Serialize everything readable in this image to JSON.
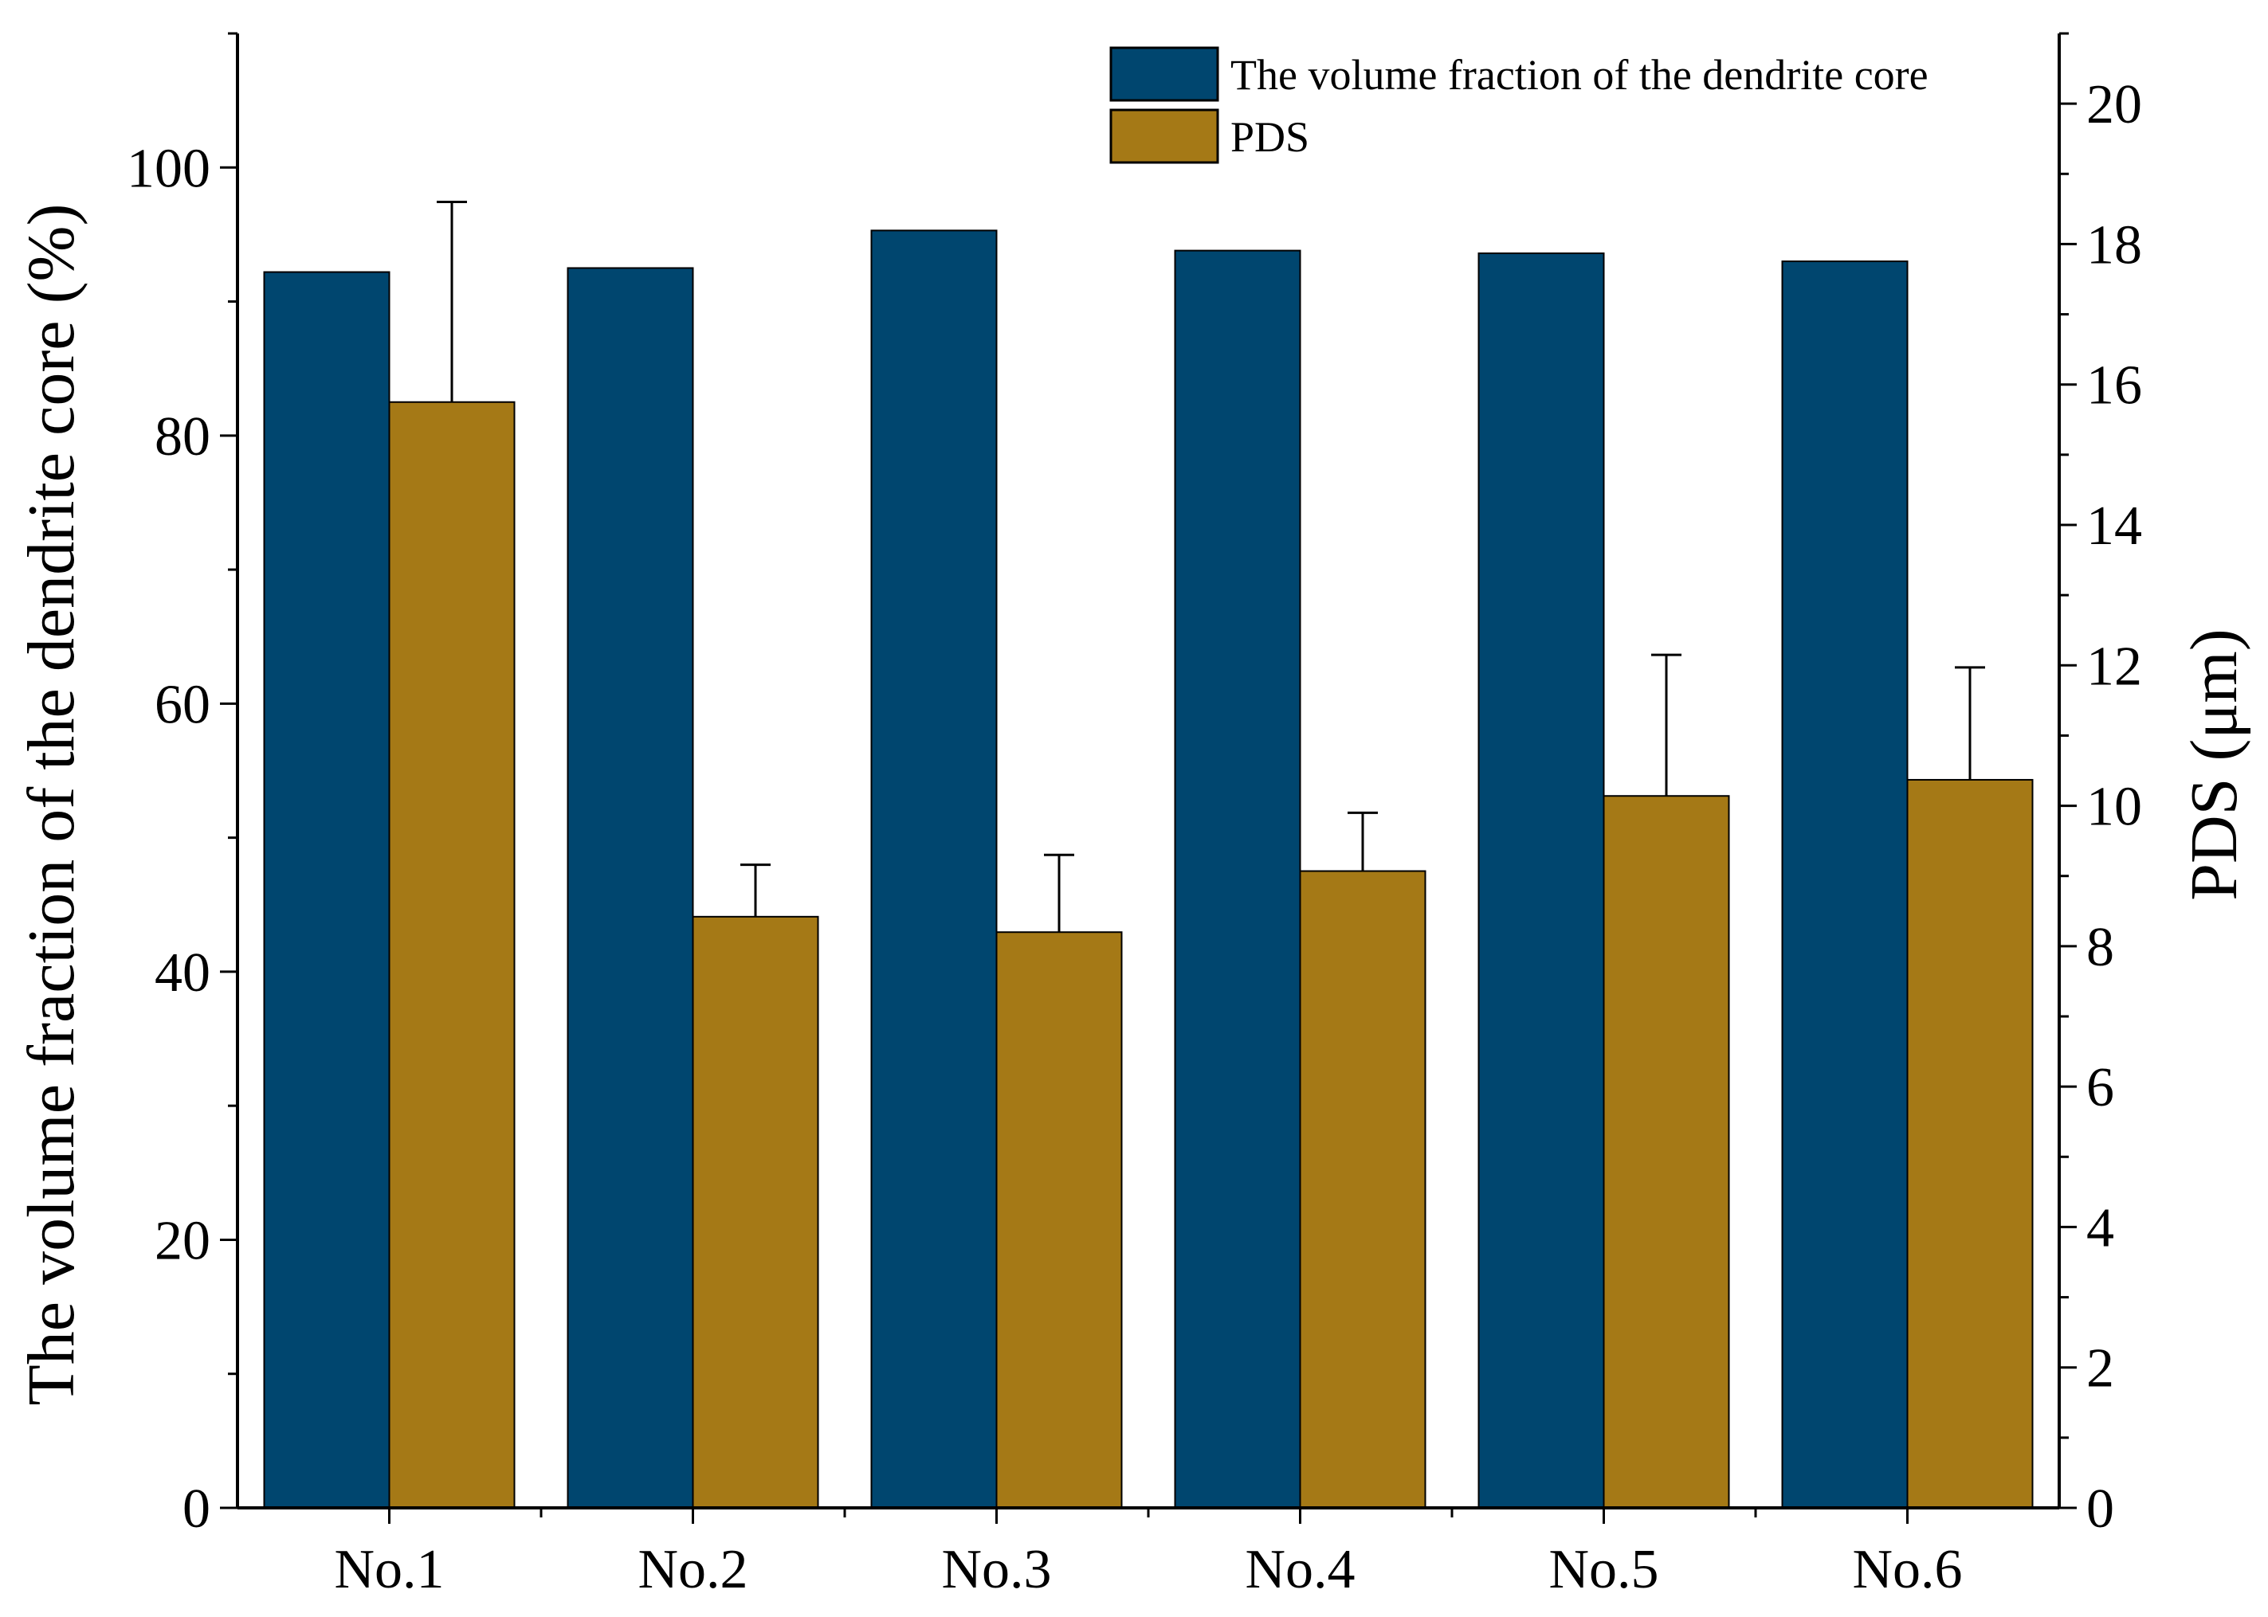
{
  "chart_data": {
    "type": "bar",
    "categories": [
      "No.1",
      "No.2",
      "No.3",
      "No.4",
      "No.5",
      "No.6"
    ],
    "series": [
      {
        "name": "The volume fraction of the dendrite core",
        "axis": "left",
        "color": "#00466f",
        "values": [
          92.2,
          92.5,
          95.3,
          93.8,
          93.6,
          93.0
        ]
      },
      {
        "name": "PDS",
        "axis": "right",
        "color": "#a57916",
        "values": [
          15.75,
          8.42,
          8.2,
          9.07,
          10.14,
          10.37
        ],
        "error_upper": [
          2.85,
          0.74,
          1.1,
          0.83,
          2.01,
          1.6
        ]
      }
    ],
    "ylabel": "The volume fraction of the dendrite core (%)",
    "y2label": "PDS (μm)",
    "ylim": [
      0,
      110
    ],
    "y2lim": [
      0,
      21
    ],
    "yticks": [
      0,
      20,
      40,
      60,
      80,
      100
    ],
    "y2ticks": [
      0,
      2,
      4,
      6,
      8,
      10,
      12,
      14,
      16,
      18,
      20
    ],
    "legend_position": "top-right",
    "grid": false
  }
}
